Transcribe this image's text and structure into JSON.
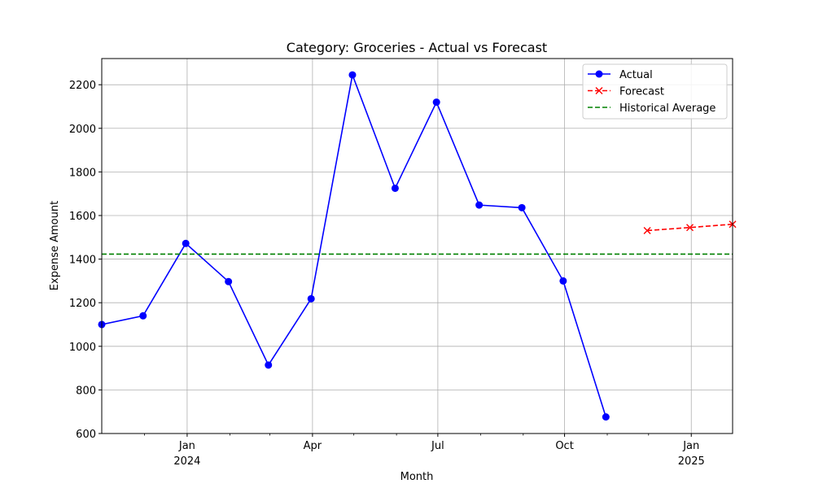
{
  "chart_data": {
    "type": "line",
    "title": "Category: Groceries - Actual vs Forecast",
    "xlabel": "Month",
    "ylabel": "Expense Amount",
    "xlim": [
      "2023-10-31",
      "2025-01-31"
    ],
    "ylim": [
      600,
      2320
    ],
    "yticks": [
      600,
      800,
      1000,
      1200,
      1400,
      1600,
      1800,
      2000,
      2200
    ],
    "xticks_major": [
      {
        "date": "2024-01-01",
        "label": "Jan",
        "sublabel": "2024"
      },
      {
        "date": "2024-04-01",
        "label": "Apr",
        "sublabel": ""
      },
      {
        "date": "2024-07-01",
        "label": "Jul",
        "sublabel": ""
      },
      {
        "date": "2024-10-01",
        "label": "Oct",
        "sublabel": ""
      },
      {
        "date": "2025-01-01",
        "label": "Jan",
        "sublabel": "2025"
      }
    ],
    "xticks_minor": [
      "2023-12-01",
      "2024-02-01",
      "2024-03-01",
      "2024-05-01",
      "2024-06-01",
      "2024-08-01",
      "2024-09-01",
      "2024-11-01",
      "2024-12-01"
    ],
    "grid": true,
    "legend_position": "top-right",
    "series": [
      {
        "name": "Actual",
        "color": "#0000ff",
        "style": "solid",
        "marker": "circle",
        "points": [
          {
            "x": "2023-10-31",
            "y": 1100
          },
          {
            "x": "2023-11-30",
            "y": 1140
          },
          {
            "x": "2023-12-31",
            "y": 1472
          },
          {
            "x": "2024-01-31",
            "y": 1297
          },
          {
            "x": "2024-02-29",
            "y": 914
          },
          {
            "x": "2024-03-31",
            "y": 1218
          },
          {
            "x": "2024-04-30",
            "y": 2245
          },
          {
            "x": "2024-05-31",
            "y": 1725
          },
          {
            "x": "2024-06-30",
            "y": 2120
          },
          {
            "x": "2024-07-31",
            "y": 1648
          },
          {
            "x": "2024-08-31",
            "y": 1636
          },
          {
            "x": "2024-09-30",
            "y": 1300
          },
          {
            "x": "2024-10-31",
            "y": 676
          }
        ]
      },
      {
        "name": "Forecast",
        "color": "#ff0000",
        "style": "dashed",
        "marker": "x",
        "points": [
          {
            "x": "2024-11-30",
            "y": 1531
          },
          {
            "x": "2024-12-31",
            "y": 1545
          },
          {
            "x": "2025-01-31",
            "y": 1560
          }
        ]
      },
      {
        "name": "Historical Average",
        "color": "#008000",
        "style": "dashed",
        "marker": "none",
        "constant": 1423
      }
    ]
  }
}
